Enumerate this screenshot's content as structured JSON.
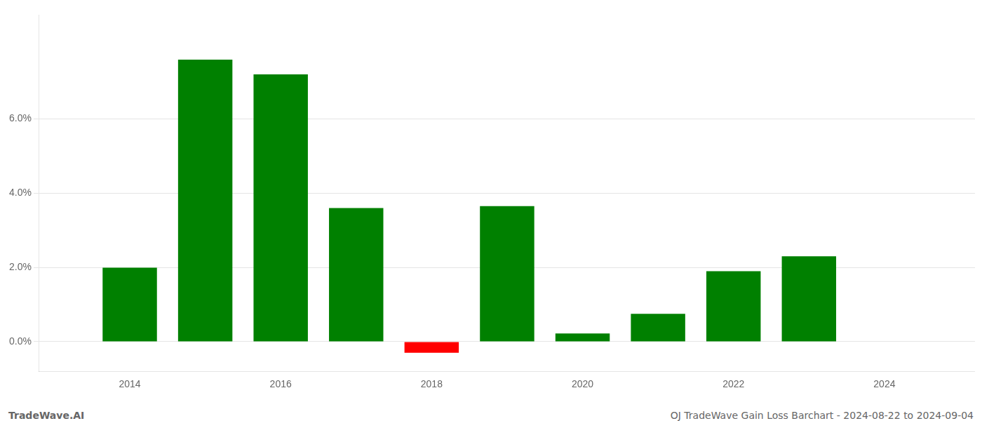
{
  "chart_data": {
    "type": "bar",
    "x": [
      2014,
      2015,
      2016,
      2017,
      2018,
      2019,
      2020,
      2021,
      2022,
      2023
    ],
    "values": [
      0.0199,
      0.076,
      0.072,
      0.036,
      -0.003,
      0.0365,
      0.0022,
      0.0075,
      0.019,
      0.023
    ],
    "colors": [
      "#008000",
      "#008000",
      "#008000",
      "#008000",
      "#ff0000",
      "#008000",
      "#008000",
      "#008000",
      "#008000",
      "#008000"
    ],
    "xlim": [
      2012.8,
      2025.2
    ],
    "xticks": [
      2014,
      2016,
      2018,
      2020,
      2022,
      2024
    ],
    "ylim": [
      -0.008,
      0.088
    ],
    "yticks": [
      {
        "value": 0.0,
        "label": "0.0%"
      },
      {
        "value": 0.02,
        "label": "2.0%"
      },
      {
        "value": 0.04,
        "label": "4.0%"
      },
      {
        "value": 0.06,
        "label": "6.0%"
      }
    ],
    "grid": "y",
    "annotations": [
      "TradeWave.AI",
      "OJ TradeWave Gain Loss Barchart - 2024-08-22 to 2024-09-04"
    ]
  }
}
